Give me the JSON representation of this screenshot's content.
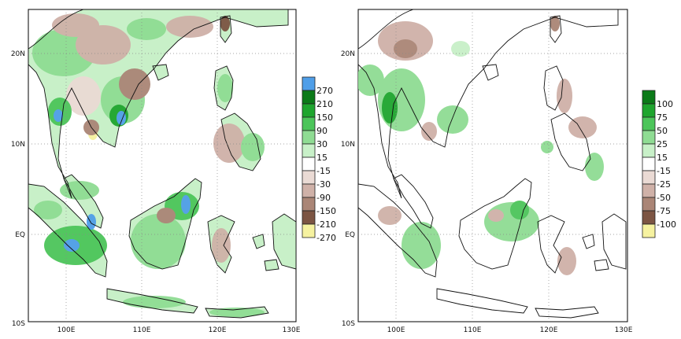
{
  "maps": [
    {
      "lat_ticks": [
        "20N",
        "10N",
        "EQ",
        "10S"
      ],
      "lon_ticks": [
        "100E",
        "110E",
        "120E",
        "130E"
      ],
      "legend": {
        "labels": [
          "270",
          "210",
          "150",
          "90",
          "30",
          "15",
          "-15",
          "-30",
          "-90",
          "-150",
          "-210",
          "-270"
        ],
        "colors": [
          "#4f9ee8",
          "#0b7a18",
          "#1ea52e",
          "#4cc55a",
          "#8fdc93",
          "#c8f0c8",
          "#ffffff",
          "#eadad4",
          "#cfb1a8",
          "#aa8576",
          "#7c5543",
          "#f6f2a0"
        ]
      }
    },
    {
      "lat_ticks": [
        "20N",
        "10N",
        "EQ",
        "10S"
      ],
      "lon_ticks": [
        "100E",
        "110E",
        "120E",
        "130E"
      ],
      "legend": {
        "labels": [
          "100",
          "75",
          "50",
          "25",
          "15",
          "-15",
          "-25",
          "-50",
          "-75",
          "-100"
        ],
        "colors": [
          "#0b7a18",
          "#1ea52e",
          "#4cc55a",
          "#8fdc93",
          "#c8f0c8",
          "#ffffff",
          "#eadad4",
          "#cfb1a8",
          "#aa8576",
          "#7c5543",
          "#f6f2a0"
        ]
      }
    }
  ]
}
